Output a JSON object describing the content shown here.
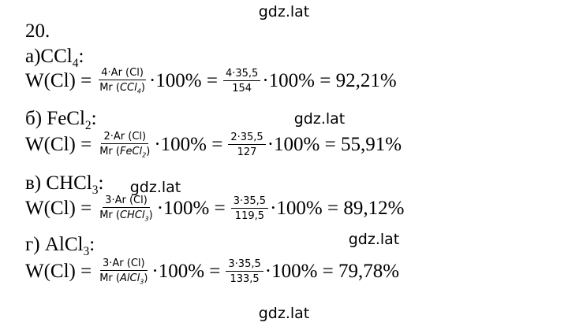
{
  "watermarks": [
    "gdz.lat",
    "gdz.lat",
    "gdz.lat",
    "gdz.lat",
    "gdz.lat"
  ],
  "task_number": "20.",
  "items": [
    {
      "label": {
        "prefix": "а)",
        "compound": "CCl",
        "sub": "4",
        "suffix": ":"
      },
      "lhs": "W(Cl) =",
      "frac1": {
        "num": "4·Ar (Cl)",
        "den_open": "Mr (",
        "den_compound": "CCl",
        "den_sub": "4",
        "den_close": ")"
      },
      "mid": "·100% =",
      "frac2": {
        "num": "4·35,5",
        "den": "154"
      },
      "result": "·100% = 92,21%"
    },
    {
      "label": {
        "prefix": "б) ",
        "compound": "FeCl",
        "sub": "2",
        "suffix": ":"
      },
      "lhs": "W(Cl) =",
      "frac1": {
        "num": "2·Ar (Cl)",
        "den_open": "Mr (",
        "den_compound": "FeCl",
        "den_sub": "2",
        "den_close": ")"
      },
      "mid": "·100% =",
      "frac2": {
        "num": "2·35,5",
        "den": "127"
      },
      "result": "·100% = 55,91%"
    },
    {
      "label": {
        "prefix": "в) ",
        "compound": "CHCl",
        "sub": "3",
        "suffix": ":"
      },
      "lhs": "W(Cl) =",
      "frac1": {
        "num": "3·Ar (Cl)",
        "den_open": "Mr (",
        "den_compound": "CHCl",
        "den_sub": "3",
        "den_close": ")"
      },
      "mid": "·100% =",
      "frac2": {
        "num": "3·35,5",
        "den": "119,5"
      },
      "result": "·100% = 89,12%"
    },
    {
      "label": {
        "prefix": "г) ",
        "compound": "AlCl",
        "sub": "3",
        "suffix": ":"
      },
      "lhs": "W(Cl) =",
      "frac1": {
        "num": "3·Ar (Cl)",
        "den_open": "Mr (",
        "den_compound": "AlCl",
        "den_sub": "3",
        "den_close": ")"
      },
      "mid": "·100% =",
      "frac2": {
        "num": "3·35,5",
        "den": "133,5"
      },
      "result": "·100% = 79,78%"
    }
  ]
}
